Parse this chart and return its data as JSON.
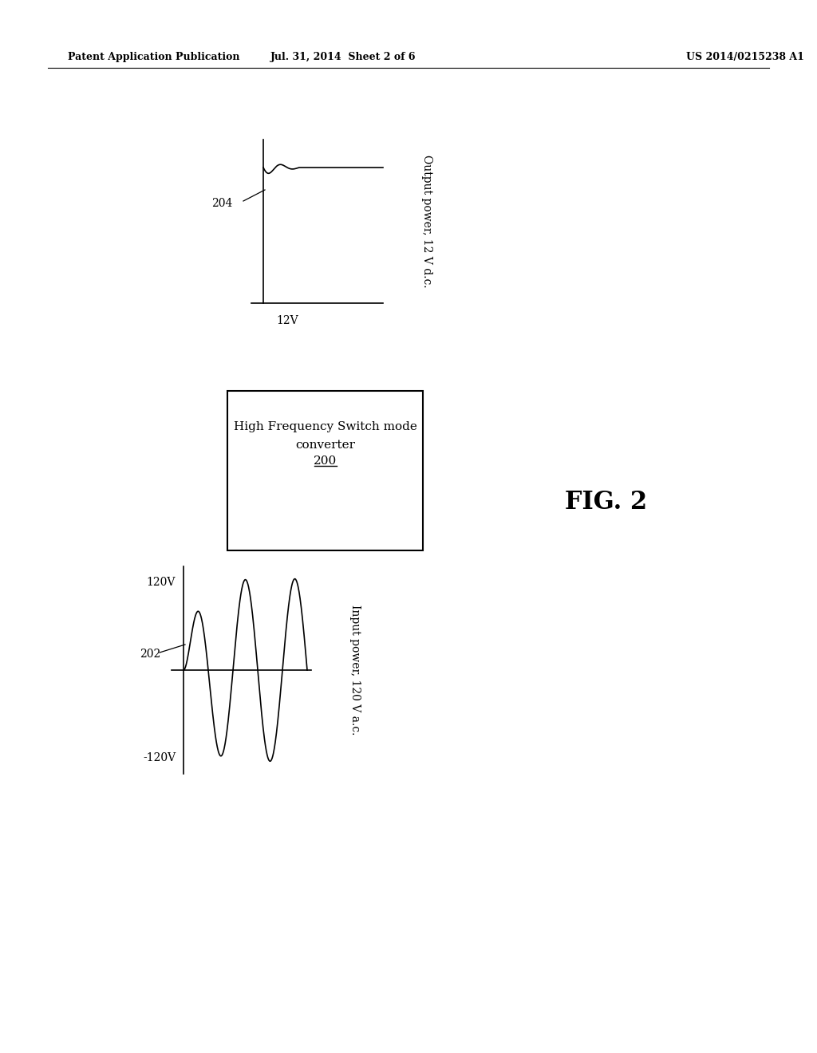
{
  "bg_color": "#ffffff",
  "header_left": "Patent Application Publication",
  "header_center": "Jul. 31, 2014  Sheet 2 of 6",
  "header_right": "US 2014/0215238 A1",
  "fig_label": "FIG. 2",
  "box_line1": "High Frequency Switch mode",
  "box_line2": "converter",
  "box_ref": "200",
  "input_label": "202",
  "input_top_label": "120V",
  "input_bot_label": "-120V",
  "input_side_label": "Input power, 120 V a.c.",
  "output_label": "204",
  "output_v_label": "12V",
  "output_side_label": "Output power, 12 V d.c."
}
